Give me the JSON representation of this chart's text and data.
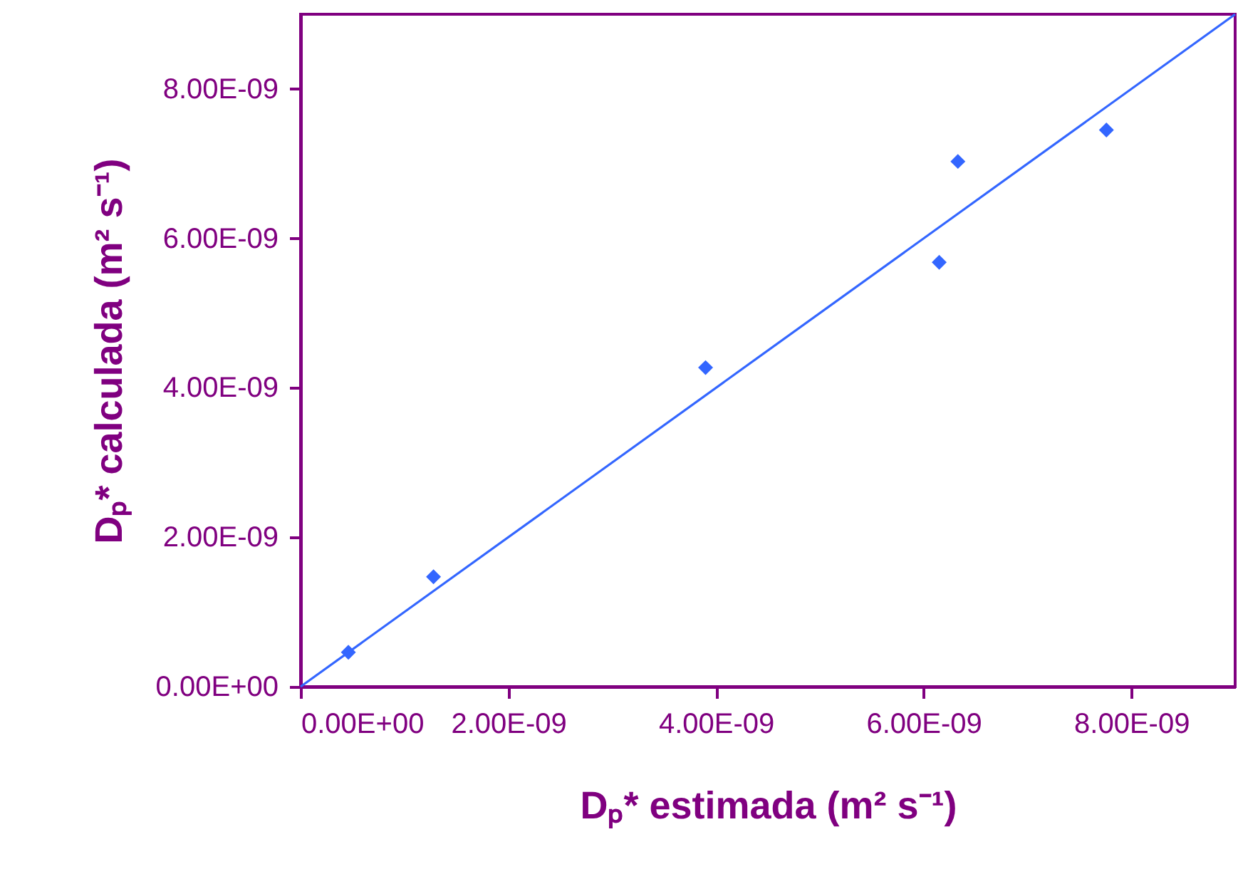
{
  "chart_data": {
    "type": "scatter",
    "xlabel": "Dₚ* estimada (m² s⁻¹)",
    "ylabel": "Dₚ* calculada (m² s⁻¹)",
    "xlim": [
      0,
      9e-09
    ],
    "ylim": [
      0,
      9e-09
    ],
    "xticks": [
      {
        "value": 0,
        "label": "0.00E+00"
      },
      {
        "value": 2e-09,
        "label": "2.00E-09"
      },
      {
        "value": 4e-09,
        "label": "4.00E-09"
      },
      {
        "value": 6e-09,
        "label": "6.00E-09"
      },
      {
        "value": 8e-09,
        "label": "8.00E-09"
      }
    ],
    "yticks": [
      {
        "value": 0,
        "label": "0.00E+00"
      },
      {
        "value": 2e-09,
        "label": "2.00E-09"
      },
      {
        "value": 4e-09,
        "label": "4.00E-09"
      },
      {
        "value": 6e-09,
        "label": "6.00E-09"
      },
      {
        "value": 8e-09,
        "label": "8.00E-09"
      }
    ],
    "grid": false,
    "marker": "diamond",
    "series": [
      {
        "color": "#3366ff",
        "x": [
          4.6e-10,
          1.28e-09,
          3.9e-09,
          6.15e-09,
          6.33e-09,
          7.76e-09
        ],
        "values": [
          4.6e-10,
          1.47e-09,
          4.27e-09,
          5.68e-09,
          7.03e-09,
          7.45e-09
        ]
      },
      {
        "type": "line",
        "color": "#3366ff",
        "marker": "none",
        "x": [
          0,
          9e-09
        ],
        "values": [
          0,
          9e-09
        ]
      }
    ]
  }
}
